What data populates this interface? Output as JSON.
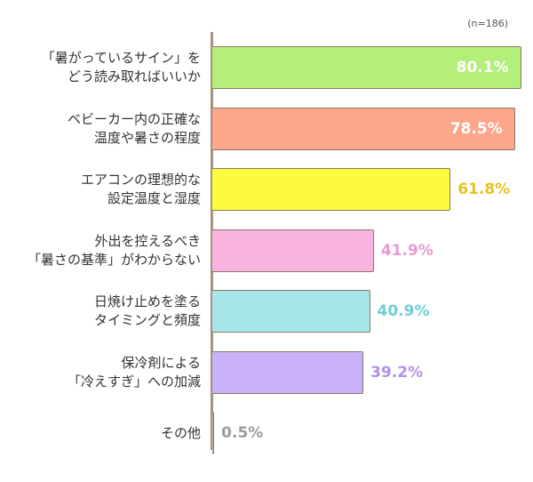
{
  "note": "(n=186)",
  "chart_data": {
    "type": "bar",
    "orientation": "horizontal",
    "xlim": [
      0,
      100
    ],
    "categories": [
      "「暑がっているサイン」を\nどう読み取ればいいか",
      "ベビーカー内の正確な\n温度や暑さの程度",
      "エアコンの理想的な\n設定温度と湿度",
      "外出を控えるべき\n「暑さの基準」がわからない",
      "日焼け止めを塗る\nタイミングと頻度",
      "保冷剤による\n「冷えすぎ」への加減",
      "その他"
    ],
    "values": [
      80.1,
      78.5,
      61.8,
      41.9,
      40.9,
      39.2,
      0.5
    ],
    "value_labels": [
      "80.1%",
      "78.5%",
      "61.8%",
      "41.9%",
      "40.9%",
      "39.2%",
      "0.5%"
    ],
    "bar_colors": [
      "#b4ef79",
      "#fca68a",
      "#fdfb3f",
      "#f8b4de",
      "#a7e6e8",
      "#c9b2f8",
      "#b3b3b3"
    ],
    "label_colors": [
      "#ffffff",
      "#ffffff",
      "#e6c321",
      "#e59ad2",
      "#6ccfd9",
      "#b290e8",
      "#9b9b9b"
    ],
    "label_inside": [
      true,
      true,
      false,
      false,
      false,
      false,
      false
    ]
  }
}
